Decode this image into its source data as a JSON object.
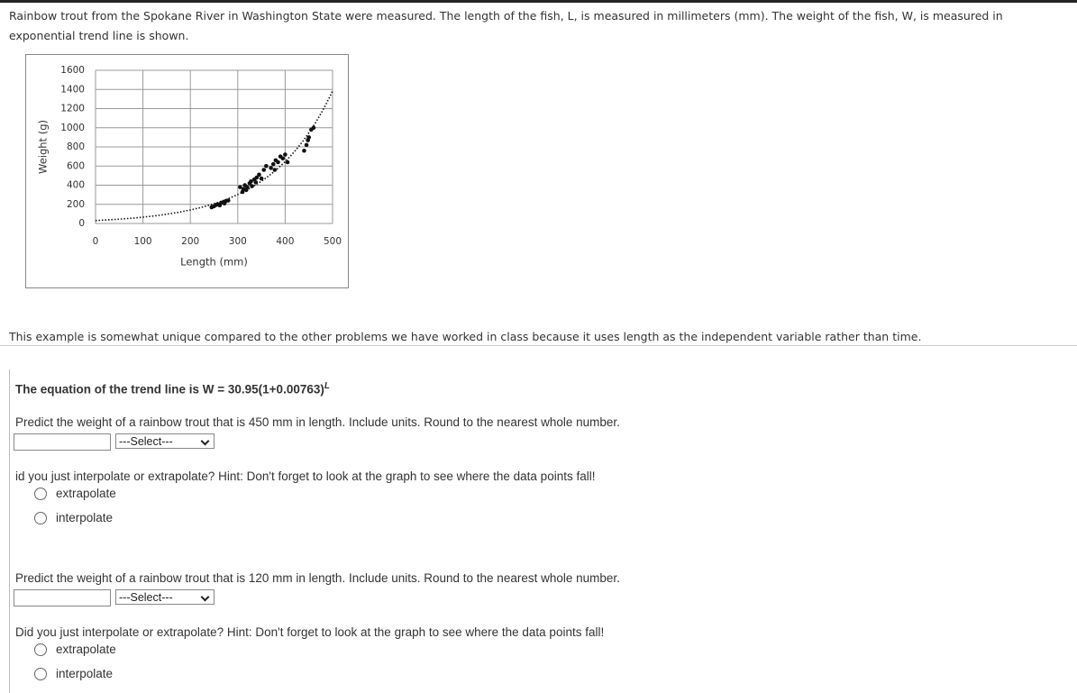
{
  "intro": [
    "Rainbow trout from the Spokane River in Washington State were measured. The length of the fish, L, is measured in millimeters (mm). The weight of the fish, W, is measured in",
    "exponential trend line is shown."
  ],
  "chart_data": {
    "type": "scatter",
    "x_label": "Length (mm)",
    "y_label": "Weight (g)",
    "series": [
      {
        "color": "#111111",
        "x": [
          245,
          250,
          255,
          258,
          262,
          265,
          268,
          272,
          275,
          280,
          305,
          310,
          312,
          315,
          318,
          320,
          325,
          328,
          330,
          335,
          338,
          340,
          345,
          350,
          355,
          360,
          370,
          375,
          378,
          380,
          385,
          390,
          395,
          400,
          405,
          440,
          445,
          448,
          450,
          455,
          460
        ],
        "values": [
          170,
          180,
          195,
          200,
          190,
          215,
          220,
          210,
          235,
          240,
          380,
          330,
          360,
          400,
          350,
          380,
          420,
          440,
          390,
          460,
          430,
          480,
          510,
          470,
          560,
          600,
          580,
          620,
          560,
          660,
          640,
          700,
          680,
          720,
          640,
          760,
          820,
          870,
          900,
          980,
          1000
        ]
      }
    ],
    "trendline": {
      "type": "exponential",
      "a": 30.95,
      "r": 0.00763,
      "color": "#111111"
    },
    "xlim": [
      0,
      500
    ],
    "ylim": [
      0,
      1600
    ],
    "xticks": [
      0,
      100,
      200,
      300,
      400,
      500
    ],
    "yticks": [
      0,
      200,
      400,
      600,
      800,
      1000,
      1200,
      1400,
      1600
    ],
    "grid": true
  },
  "note": "This example is somewhat unique compared to the other problems we have worked in class because it uses length as the independent variable rather than time.",
  "equation": "The equation of the trend line is W = 30.95(1+0.00763)",
  "equation_exponent": "L",
  "questions": [
    {
      "prompt": "Predict the weight of a rainbow trout that is 450 mm in length. Include units. Round to the nearest whole number.",
      "select": "---Select---",
      "followup": "id you just interpolate or extrapolate? Hint: Don't forget to look at the graph to see where the data points fall!",
      "options": [
        "extrapolate",
        "interpolate"
      ]
    },
    {
      "prompt": "Predict the weight of a rainbow trout that is 120 mm in length. Include units. Round to the nearest whole number.",
      "select": "---Select---",
      "followup": "Did you just interpolate or extrapolate? Hint: Don't forget to look at the graph to see where the data points fall!",
      "options": [
        "extrapolate",
        "interpolate"
      ]
    }
  ]
}
